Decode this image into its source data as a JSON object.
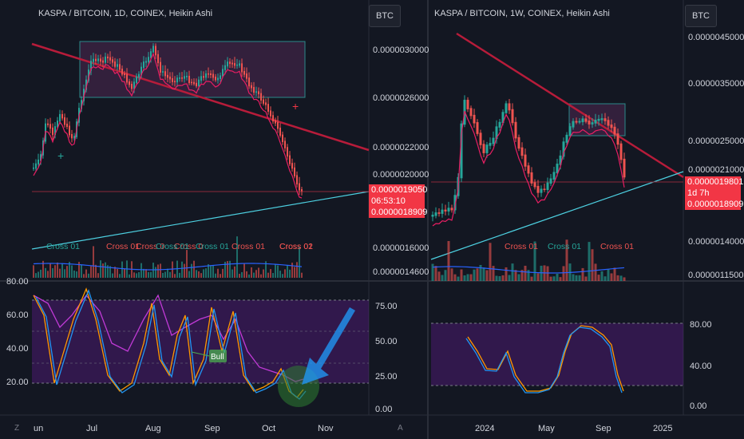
{
  "left_chart": {
    "title": "KASPA / BITCOIN, 1D, COINEX, Heikin Ashi",
    "price_button": "BTC",
    "price_ticks": [
      "0.0000030000",
      "0.0000026000",
      "0.0000022000",
      "0.0000020000",
      "0.0000016000",
      "0.0000014600"
    ],
    "last_price": "0.0000019050",
    "countdown": "06:53:10",
    "price_low": "0.0000018909",
    "cross_labels": [
      "Cross 01",
      "Cross 0",
      "Cross 0",
      "Cross 01",
      "Cross 01",
      "Cross 02"
    ],
    "cross_labels_green": [
      "Cross 01",
      "Cross 01",
      "Cross 01"
    ],
    "osc_ticks": [
      "80.00",
      "60.00",
      "40.00",
      "20.00"
    ],
    "osc_right_ticks": [
      "75.00",
      "50.00",
      "25.00",
      "0.00"
    ],
    "bull_label": "Bull",
    "time_ticks": [
      "un",
      "Jul",
      "Aug",
      "Sep",
      "Oct",
      "Nov"
    ],
    "axis_icon": "Z"
  },
  "right_chart": {
    "title": "KASPA / BITCOIN, 1W, COINEX, Heikin Ashi",
    "price_button": "BTC",
    "price_ticks": [
      "0.0000045000",
      "0.0000035000",
      "0.0000025000",
      "0.0000021000",
      "0.0000014000",
      "0.0000011500"
    ],
    "last_price": "0.0000019801",
    "countdown": "1d 7h",
    "price_low": "0.0000018909",
    "cross_labels": [
      "Cross 01",
      "Cross 01",
      "Cross 01"
    ],
    "osc_ticks": [
      "80.00",
      "40.00",
      "0.00"
    ],
    "time_ticks": [
      "2024",
      "May",
      "Sep",
      "2025"
    ],
    "axis_icon": "A"
  },
  "colors": {
    "up": "#26a69a",
    "down": "#ef5350",
    "accent": "#f23645",
    "trend": "#b71c3a",
    "support": "#4dd0e1",
    "band": "#7b1fa2"
  }
}
